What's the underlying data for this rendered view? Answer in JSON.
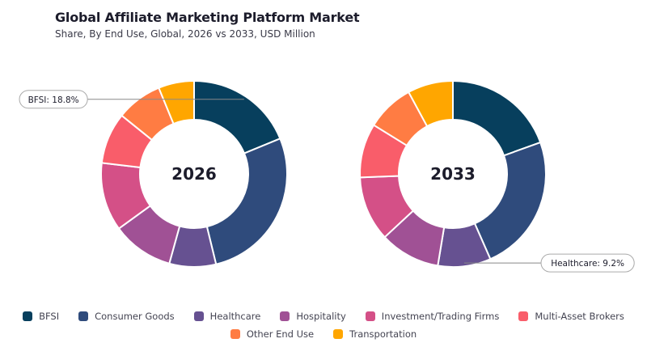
{
  "title": "Global Affiliate Marketing Platform Market",
  "subtitle": "Share, By End Use, Global, 2026 vs 2033, USD Million",
  "chart_data": {
    "type": "pie",
    "variant": "donut",
    "categories": [
      "BFSI",
      "Consumer Goods",
      "Healthcare",
      "Hospitality",
      "Investment/Trading Firms",
      "Multi-Asset Brokers",
      "Other End Use",
      "Transportation"
    ],
    "colors": [
      "#073f5d",
      "#2f4b7c",
      "#665191",
      "#a05195",
      "#d45087",
      "#f95d6a",
      "#ff7c43",
      "#ffa600"
    ],
    "legend_position": "bottom",
    "series": [
      {
        "name": "2026",
        "values": [
          18.8,
          27.4,
          8.1,
          10.7,
          11.9,
          8.9,
          8.0,
          6.2
        ],
        "callout": {
          "category": "BFSI",
          "text": "BFSI: 18.8%"
        }
      },
      {
        "name": "2033",
        "values": [
          19.5,
          23.9,
          9.2,
          10.5,
          11.3,
          9.4,
          8.3,
          7.9
        ],
        "callout": {
          "category": "Healthcare",
          "text": "Healthcare: 9.2%"
        }
      }
    ]
  }
}
